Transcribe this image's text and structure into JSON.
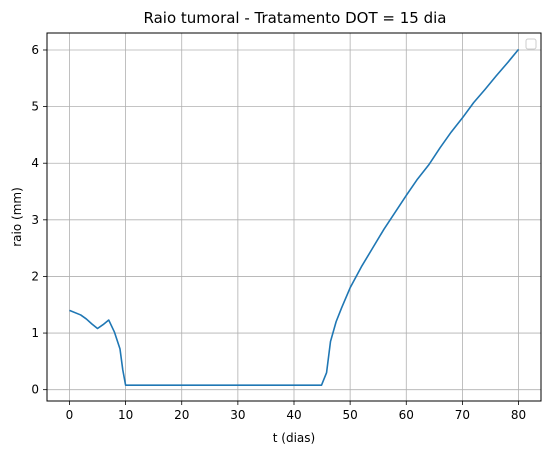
{
  "chart_data": {
    "type": "line",
    "title": "Raio tumoral - Tratamento DOT = 15 dia",
    "xlabel": "t (dias)",
    "ylabel": "raio (mm)",
    "xlim": [
      -4,
      84
    ],
    "ylim": [
      -0.2,
      6.3
    ],
    "xticks": [
      0,
      10,
      20,
      30,
      40,
      50,
      60,
      70,
      80
    ],
    "yticks": [
      0,
      1,
      2,
      3,
      4,
      5,
      6
    ],
    "grid": true,
    "legend": "top-right",
    "colors": {
      "line": "#1f77b4",
      "grid": "#b0b0b0"
    },
    "series": [
      {
        "x": [
          0,
          2,
          3,
          4,
          5,
          6,
          7,
          8,
          9,
          9.5,
          10,
          15,
          20,
          25,
          30,
          35,
          40,
          44.9,
          45.8,
          46.5,
          47.5,
          48.5,
          50,
          52,
          54,
          56,
          58,
          60,
          62,
          64,
          66,
          68,
          70,
          72,
          74,
          76,
          78,
          80
        ],
        "y": [
          1.4,
          1.32,
          1.25,
          1.16,
          1.08,
          1.15,
          1.23,
          1.02,
          0.72,
          0.35,
          0.08,
          0.08,
          0.08,
          0.08,
          0.08,
          0.08,
          0.08,
          0.08,
          0.3,
          0.85,
          1.2,
          1.45,
          1.8,
          2.17,
          2.5,
          2.83,
          3.13,
          3.43,
          3.72,
          3.97,
          4.27,
          4.55,
          4.8,
          5.07,
          5.3,
          5.54,
          5.77,
          6.01
        ]
      }
    ]
  }
}
